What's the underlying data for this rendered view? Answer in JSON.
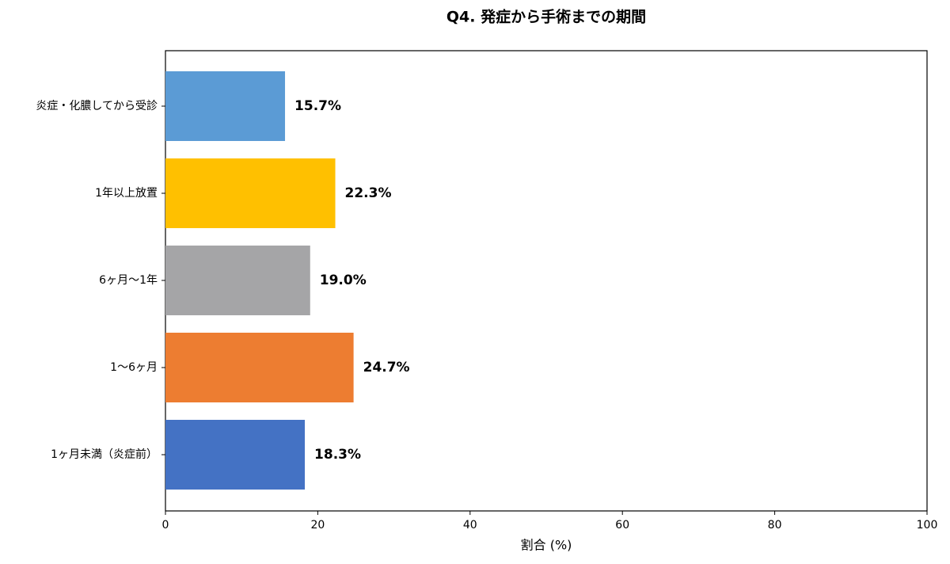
{
  "chart_data": {
    "type": "barh",
    "title": "Q4. 発症から手術までの期間",
    "xlabel": "割合 (%)",
    "categories": [
      "炎症・化膿してから受診",
      "1年以上放置",
      "6ヶ月〜1年",
      "1〜6ヶ月",
      "1ヶ月未満（炎症前）"
    ],
    "values": [
      15.7,
      22.3,
      19.0,
      24.7,
      18.3
    ],
    "value_labels": [
      "15.7%",
      "22.3%",
      "19.0%",
      "24.7%",
      "18.3%"
    ],
    "colors": [
      "#5b9bd5",
      "#ffc000",
      "#a5a5a7",
      "#ed7d31",
      "#4472c4"
    ],
    "xlim": [
      0,
      100
    ],
    "xticks": [
      0,
      20,
      40,
      60,
      80,
      100
    ],
    "grid": false
  }
}
